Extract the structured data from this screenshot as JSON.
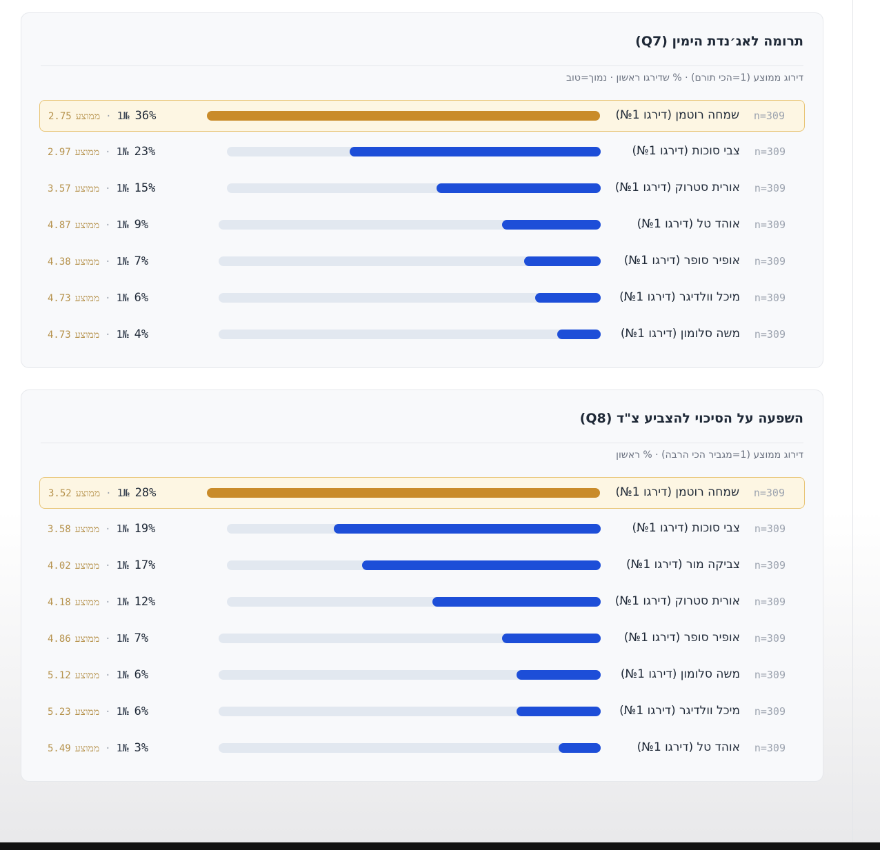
{
  "colors": {
    "bar": "#1d4ed8",
    "highlight_bar": "#c98b2a",
    "track": "#e2e8f0",
    "highlight_bg": "#fdf6e3",
    "highlight_border": "#e8c474",
    "avg_text": "#b5914a"
  },
  "chart_data": [
    {
      "type": "bar",
      "title": "תרומה לאג׳נדת הימין (Q7)",
      "subtitle": "דירוג ממוצע (1=הכי תורם) · % שדירגו ראשון · נמוך=טוב",
      "xlim": [
        0,
        36
      ],
      "rows": [
        {
          "name": "שמחה רוטמן (דירגו 1№)",
          "n": "n=309",
          "pct": 36,
          "pct_label": "36%",
          "rank_label": "1№",
          "avg": "2.75",
          "avg_label": "ממוצע",
          "highlight": true
        },
        {
          "name": "צבי סוכות (דירגו 1№)",
          "n": "n=309",
          "pct": 23,
          "pct_label": "23%",
          "rank_label": "1№",
          "avg": "2.97",
          "avg_label": "ממוצע",
          "highlight": false
        },
        {
          "name": "אורית סטרוק (דירגו 1№)",
          "n": "n=309",
          "pct": 15,
          "pct_label": "15%",
          "rank_label": "1№",
          "avg": "3.57",
          "avg_label": "ממוצע",
          "highlight": false
        },
        {
          "name": "אוהד טל (דירגו 1№)",
          "n": "n=309",
          "pct": 9,
          "pct_label": "9%",
          "rank_label": "1№",
          "avg": "4.87",
          "avg_label": "ממוצע",
          "highlight": false
        },
        {
          "name": "אופיר סופר (דירגו 1№)",
          "n": "n=309",
          "pct": 7,
          "pct_label": "7%",
          "rank_label": "1№",
          "avg": "4.38",
          "avg_label": "ממוצע",
          "highlight": false
        },
        {
          "name": "מיכל וולדיגר (דירגו 1№)",
          "n": "n=309",
          "pct": 6,
          "pct_label": "6%",
          "rank_label": "1№",
          "avg": "4.73",
          "avg_label": "ממוצע",
          "highlight": false
        },
        {
          "name": "משה סלומון (דירגו 1№)",
          "n": "n=309",
          "pct": 4,
          "pct_label": "4%",
          "rank_label": "1№",
          "avg": "4.73",
          "avg_label": "ממוצע",
          "highlight": false
        }
      ]
    },
    {
      "type": "bar",
      "title": "השפעה על הסיכוי להצביע צ\"ד (Q8)",
      "subtitle": "דירוג ממוצע (1=מגביר הכי הרבה) · % ראשון",
      "xlim": [
        0,
        28
      ],
      "rows": [
        {
          "name": "שמחה רוטמן (דירגו 1№)",
          "n": "n=309",
          "pct": 28,
          "pct_label": "28%",
          "rank_label": "1№",
          "avg": "3.52",
          "avg_label": "ממוצע",
          "highlight": true
        },
        {
          "name": "צבי סוכות (דירגו 1№)",
          "n": "n=309",
          "pct": 19,
          "pct_label": "19%",
          "rank_label": "1№",
          "avg": "3.58",
          "avg_label": "ממוצע",
          "highlight": false
        },
        {
          "name": "צביקה מור (דירגו 1№)",
          "n": "n=309",
          "pct": 17,
          "pct_label": "17%",
          "rank_label": "1№",
          "avg": "4.02",
          "avg_label": "ממוצע",
          "highlight": false
        },
        {
          "name": "אורית סטרוק (דירגו 1№)",
          "n": "n=309",
          "pct": 12,
          "pct_label": "12%",
          "rank_label": "1№",
          "avg": "4.18",
          "avg_label": "ממוצע",
          "highlight": false
        },
        {
          "name": "אופיר סופר (דירגו 1№)",
          "n": "n=309",
          "pct": 7,
          "pct_label": "7%",
          "rank_label": "1№",
          "avg": "4.86",
          "avg_label": "ממוצע",
          "highlight": false
        },
        {
          "name": "משה סלומון (דירגו 1№)",
          "n": "n=309",
          "pct": 6,
          "pct_label": "6%",
          "rank_label": "1№",
          "avg": "5.12",
          "avg_label": "ממוצע",
          "highlight": false
        },
        {
          "name": "מיכל וולדיגר (דירגו 1№)",
          "n": "n=309",
          "pct": 6,
          "pct_label": "6%",
          "rank_label": "1№",
          "avg": "5.23",
          "avg_label": "ממוצע",
          "highlight": false
        },
        {
          "name": "אוהד טל (דירגו 1№)",
          "n": "n=309",
          "pct": 3,
          "pct_label": "3%",
          "rank_label": "1№",
          "avg": "5.49",
          "avg_label": "ממוצע",
          "highlight": false
        }
      ]
    }
  ]
}
